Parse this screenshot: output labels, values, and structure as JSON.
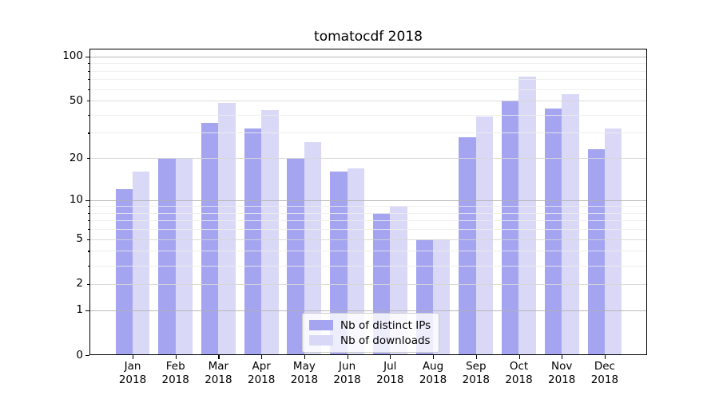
{
  "title": "tomatocdf 2018",
  "chart_data": {
    "type": "bar",
    "title": "tomatocdf 2018",
    "categories": [
      "Jan 2018",
      "Feb 2018",
      "Mar 2018",
      "Apr 2018",
      "May 2018",
      "Jun 2018",
      "Jul 2018",
      "Aug 2018",
      "Sep 2018",
      "Oct 2018",
      "Nov 2018",
      "Dec 2018"
    ],
    "series": [
      {
        "name": "Nb of distinct IPs",
        "color": "#a4a4f0",
        "values": [
          12,
          20,
          35,
          32,
          20,
          16,
          8,
          5,
          28,
          50,
          44,
          23
        ]
      },
      {
        "name": "Nb of downloads",
        "color": "#d9d9f7",
        "values": [
          16,
          20,
          48,
          43,
          26,
          17,
          9,
          5,
          39,
          73,
          55,
          32
        ]
      }
    ],
    "xlabel": "",
    "ylabel": "",
    "yscale": "log1p",
    "ylim": [
      0,
      114
    ],
    "yticks": [
      0,
      1,
      2,
      5,
      10,
      20,
      50,
      100
    ],
    "ytick_labels": [
      "0",
      "1",
      "2",
      "5",
      "10",
      "20",
      "50",
      "100"
    ],
    "grid": true,
    "legend_position": "lower center",
    "axis_color": "#000000",
    "grid_major_color": "#b0b0b0",
    "grid_minor_color": "#ececec"
  }
}
